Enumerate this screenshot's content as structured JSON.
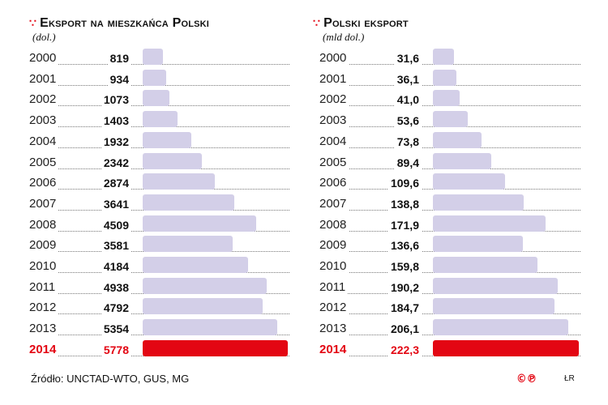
{
  "chart_data": [
    {
      "type": "bar",
      "orientation": "horizontal",
      "title": "Eksport na mieszkańca Polski",
      "subtitle": "(dol.)",
      "categories": [
        "2000",
        "2001",
        "2002",
        "2003",
        "2004",
        "2005",
        "2006",
        "2007",
        "2008",
        "2009",
        "2010",
        "2011",
        "2012",
        "2013",
        "2014"
      ],
      "values": [
        819,
        934,
        1073,
        1403,
        1932,
        2342,
        2874,
        3641,
        4509,
        3581,
        4184,
        4938,
        4792,
        5354,
        5778
      ],
      "labels": [
        "819",
        "934",
        "1073",
        "1403",
        "1932",
        "2342",
        "2874",
        "3641",
        "4509",
        "3581",
        "4184",
        "4938",
        "4792",
        "5354",
        "5778"
      ],
      "highlight": "2014",
      "colors": {
        "bar": "#d3cfe8",
        "highlight": "#e30613"
      }
    },
    {
      "type": "bar",
      "orientation": "horizontal",
      "title": "Polski eksport",
      "subtitle": "(mld dol.)",
      "categories": [
        "2000",
        "2001",
        "2002",
        "2003",
        "2004",
        "2005",
        "2006",
        "2007",
        "2008",
        "2009",
        "2010",
        "2011",
        "2012",
        "2013",
        "2014"
      ],
      "values": [
        31.6,
        36.1,
        41.0,
        53.6,
        73.8,
        89.4,
        109.6,
        138.8,
        171.9,
        136.6,
        159.8,
        190.2,
        184.7,
        206.1,
        222.3
      ],
      "labels": [
        "31,6",
        "36,1",
        "41,0",
        "53,6",
        "73,8",
        "89,4",
        "109,6",
        "138,8",
        "171,9",
        "136,6",
        "159,8",
        "190,2",
        "184,7",
        "206,1",
        "222,3"
      ],
      "highlight": "2014",
      "colors": {
        "bar": "#d3cfe8",
        "highlight": "#e30613"
      }
    }
  ],
  "footer": {
    "source": "Źródło: UNCTAD-WTO, GUS, MG",
    "logo": "©℗",
    "author": "ŁR"
  }
}
